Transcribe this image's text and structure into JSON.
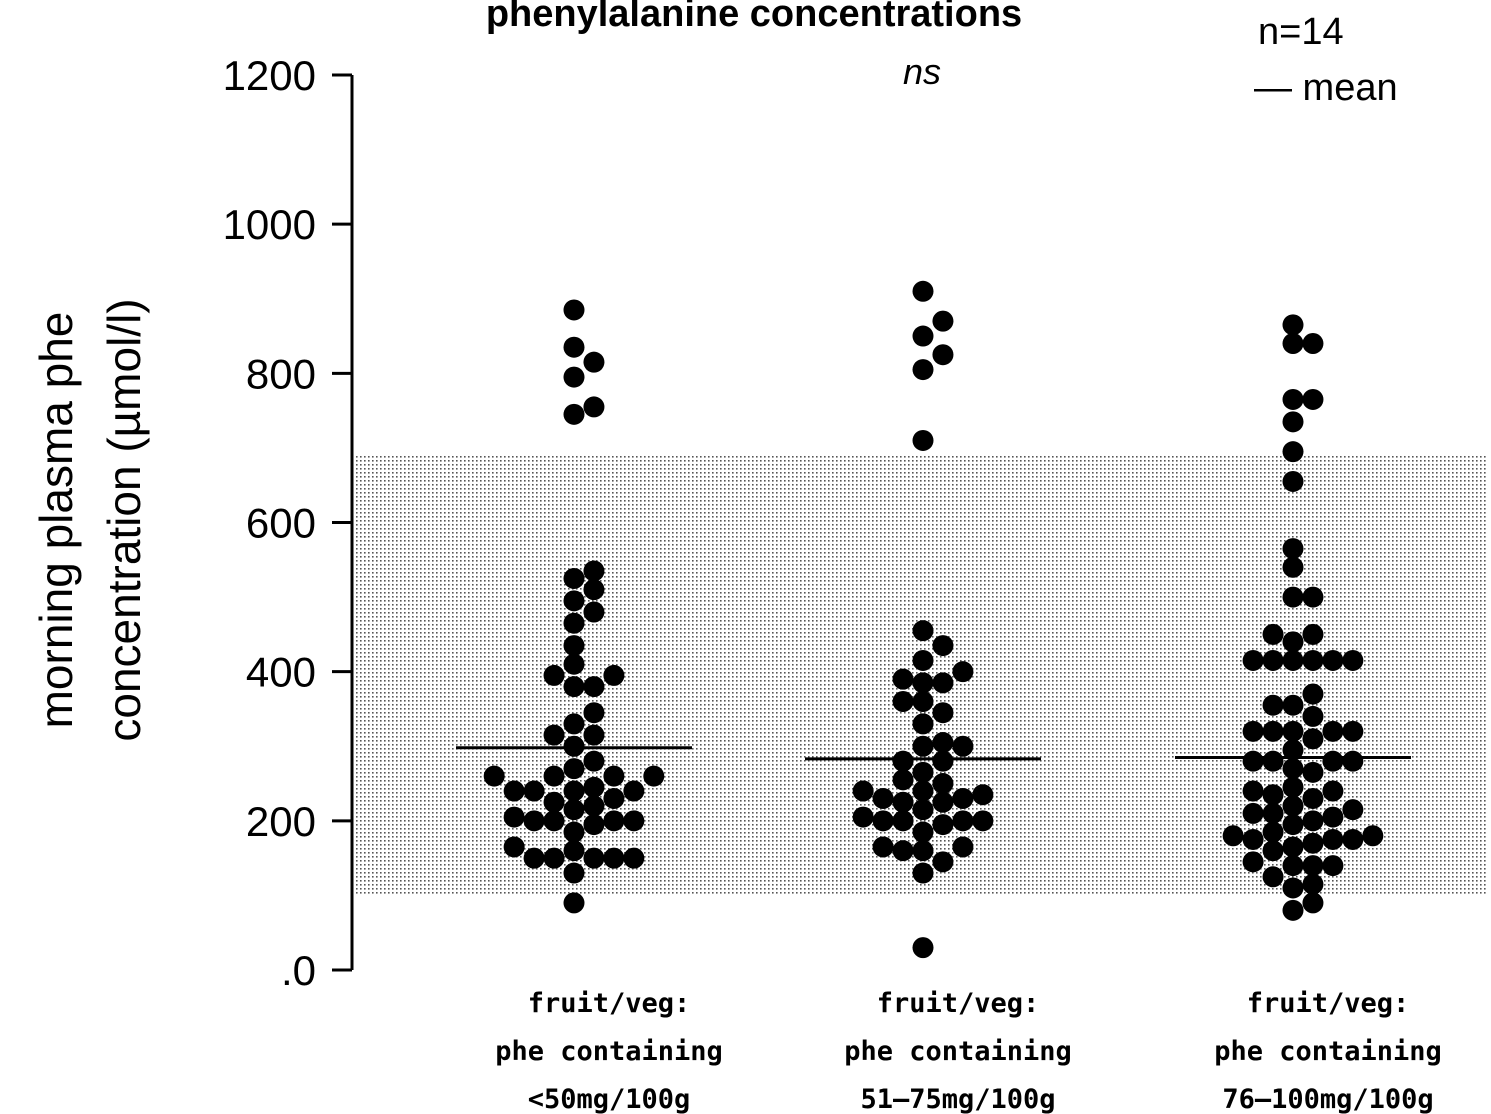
{
  "chart_data": {
    "type": "scatter",
    "title": "phenylalanine concentrations",
    "subtitle": "ns",
    "annotations": [
      "n=14",
      "— mean"
    ],
    "ylabel_lines": [
      "morning plasma phe",
      "concentration (µmol/l)"
    ],
    "ylim": [
      0,
      1200
    ],
    "yticks": [
      0,
      200,
      400,
      600,
      800,
      1000,
      1200
    ],
    "ytick_labels": [
      ".0",
      "200",
      "400",
      "600",
      "800",
      "1000",
      "1200"
    ],
    "reference_band": {
      "low": 100,
      "high": 690
    },
    "categories": [
      {
        "lines": [
          "fruit/veg:",
          "phe containing",
          "<50mg/100g"
        ]
      },
      {
        "lines": [
          "fruit/veg:",
          "phe containing",
          "51–75mg/100g"
        ]
      },
      {
        "lines": [
          "fruit/veg:",
          "phe containing",
          "76–100mg/100g"
        ]
      }
    ],
    "series": [
      {
        "mean": 298,
        "values": [
          885,
          835,
          815,
          795,
          755,
          745,
          535,
          525,
          510,
          495,
          480,
          465,
          435,
          410,
          395,
          395,
          380,
          380,
          345,
          330,
          315,
          315,
          300,
          280,
          270,
          260,
          260,
          260,
          260,
          245,
          240,
          240,
          240,
          240,
          230,
          225,
          220,
          215,
          205,
          200,
          200,
          200,
          200,
          195,
          185,
          165,
          160,
          150,
          150,
          150,
          150,
          150,
          130,
          90
        ]
      },
      {
        "mean": 283,
        "values": [
          910,
          870,
          850,
          825,
          805,
          710,
          455,
          435,
          415,
          400,
          390,
          385,
          385,
          360,
          360,
          345,
          330,
          305,
          300,
          300,
          280,
          280,
          265,
          255,
          250,
          240,
          240,
          235,
          230,
          230,
          225,
          225,
          215,
          205,
          200,
          200,
          200,
          200,
          195,
          185,
          165,
          165,
          160,
          160,
          145,
          130,
          30
        ]
      },
      {
        "mean": 285,
        "values": [
          865,
          840,
          840,
          765,
          765,
          735,
          695,
          655,
          565,
          540,
          500,
          500,
          450,
          450,
          440,
          415,
          415,
          415,
          415,
          415,
          415,
          370,
          355,
          355,
          340,
          320,
          320,
          320,
          320,
          320,
          310,
          295,
          280,
          280,
          280,
          280,
          270,
          265,
          245,
          240,
          240,
          235,
          230,
          220,
          215,
          210,
          210,
          205,
          200,
          195,
          185,
          180,
          180,
          175,
          175,
          175,
          170,
          165,
          160,
          145,
          140,
          140,
          140,
          125,
          115,
          110,
          90,
          80
        ]
      }
    ]
  }
}
